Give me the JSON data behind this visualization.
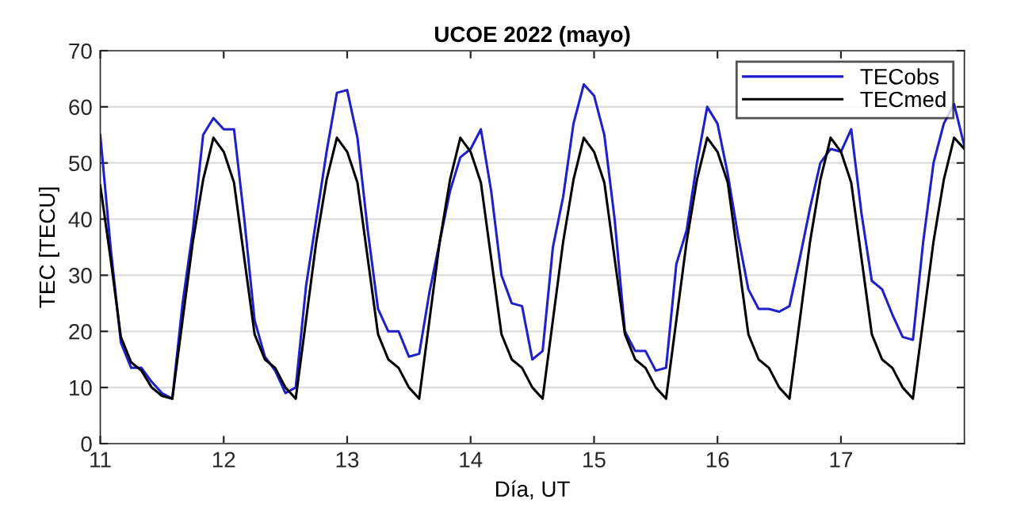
{
  "chart_data": {
    "type": "line",
    "title": "UCOE 2022 (mayo)",
    "xlabel": "Día, UT",
    "ylabel": "TEC [TECU]",
    "x": [
      11,
      11.0833,
      11.1667,
      11.25,
      11.3333,
      11.4167,
      11.5,
      11.5833,
      11.6667,
      11.75,
      11.8333,
      11.9167,
      12,
      12.0833,
      12.1667,
      12.25,
      12.3333,
      12.4167,
      12.5,
      12.5833,
      12.6667,
      12.75,
      12.8333,
      12.9167,
      13,
      13.0833,
      13.1667,
      13.25,
      13.3333,
      13.4167,
      13.5,
      13.5833,
      13.6667,
      13.75,
      13.8333,
      13.9167,
      14,
      14.0833,
      14.1667,
      14.25,
      14.3333,
      14.4167,
      14.5,
      14.5833,
      14.6667,
      14.75,
      14.8333,
      14.9167,
      15,
      15.0833,
      15.1667,
      15.25,
      15.3333,
      15.4167,
      15.5,
      15.5833,
      15.6667,
      15.75,
      15.8333,
      15.9167,
      16,
      16.0833,
      16.1667,
      16.25,
      16.3333,
      16.4167,
      16.5,
      16.5833,
      16.6667,
      16.75,
      16.8333,
      16.9167,
      17,
      17.0833,
      17.1667,
      17.25,
      17.3333,
      17.4167,
      17.5,
      17.5833,
      17.6667,
      17.75,
      17.8333,
      17.9167,
      18
    ],
    "series": [
      {
        "name": "TECobs",
        "color": "#1f1fcc",
        "values": [
          55,
          35,
          18,
          13.5,
          13.5,
          11,
          9,
          8,
          25,
          38,
          55,
          58,
          56,
          56,
          40,
          22,
          15.5,
          13,
          9,
          10,
          28,
          40,
          52,
          62.5,
          63,
          54.5,
          38,
          24,
          20,
          20,
          15.5,
          16,
          27,
          36,
          45,
          51,
          52.5,
          56,
          45,
          30,
          25,
          24.5,
          15,
          16.5,
          35,
          44,
          57,
          64,
          62,
          55,
          40,
          20,
          16.5,
          16.5,
          13,
          13.5,
          32,
          38,
          50,
          60,
          57,
          48,
          37,
          27.5,
          24,
          24,
          23.5,
          24.5,
          33,
          42,
          50,
          52.5,
          52,
          56,
          41,
          29,
          27.5,
          23,
          19,
          18.5,
          36,
          50,
          57,
          60.5,
          53
        ]
      },
      {
        "name": "TECmed",
        "color": "#000000",
        "values": [
          46,
          33,
          19,
          14.5,
          13,
          10,
          8.5,
          8,
          22,
          36,
          47,
          54.5,
          52,
          46.5,
          33,
          19.5,
          15,
          13.5,
          10,
          8,
          22,
          36,
          47,
          54.5,
          52,
          46.5,
          33,
          19.5,
          15,
          13.5,
          10,
          8,
          22,
          36,
          47,
          54.5,
          52,
          46.5,
          33,
          19.5,
          15,
          13.5,
          10,
          8,
          22,
          36,
          47,
          54.5,
          52,
          46.5,
          33,
          19.5,
          15,
          13.5,
          10,
          8,
          22,
          36,
          47,
          54.5,
          52,
          46.5,
          33,
          19.5,
          15,
          13.5,
          10,
          8,
          22,
          36,
          47,
          54.5,
          52,
          46.5,
          33,
          19.5,
          15,
          13.5,
          10,
          8,
          22,
          36,
          47,
          54.5,
          52.5
        ]
      }
    ],
    "xlim": [
      11,
      18
    ],
    "xticks": [
      11,
      12,
      13,
      14,
      15,
      16,
      17
    ],
    "ylim": [
      0,
      70
    ],
    "yticks": [
      0,
      10,
      20,
      30,
      40,
      50,
      60,
      70
    ],
    "grid": "y",
    "legend": "top right",
    "line_style": "solid",
    "marker": "none"
  }
}
